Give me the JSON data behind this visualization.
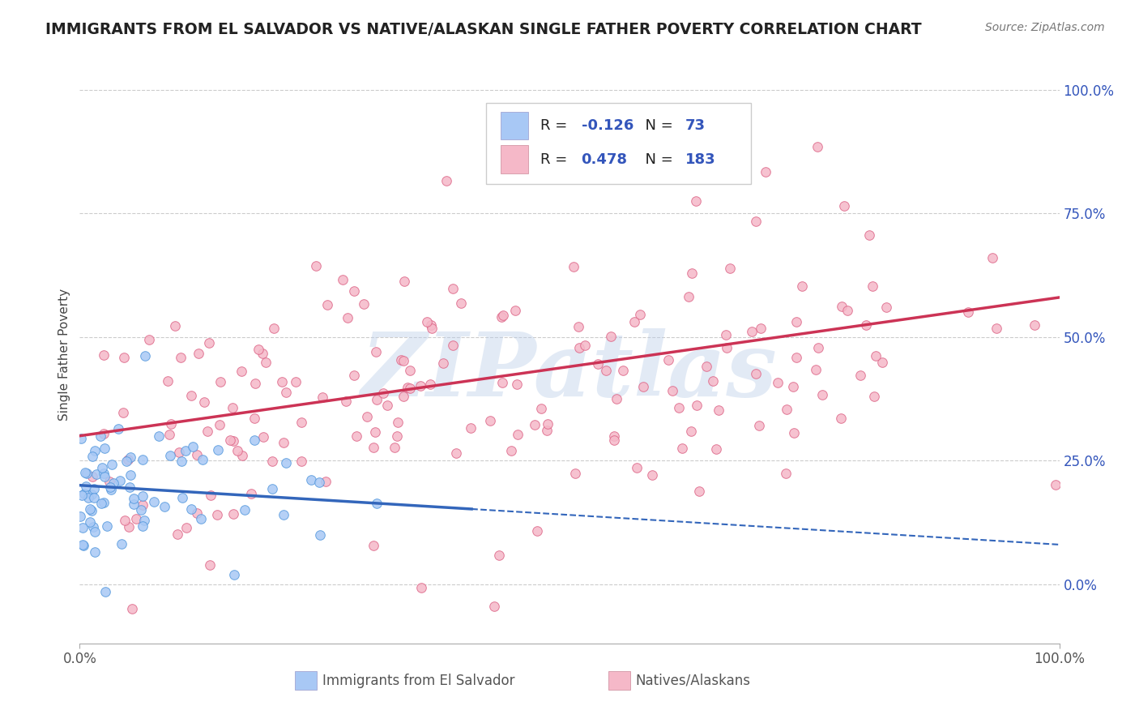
{
  "title": "IMMIGRANTS FROM EL SALVADOR VS NATIVE/ALASKAN SINGLE FATHER POVERTY CORRELATION CHART",
  "source_text": "Source: ZipAtlas.com",
  "ylabel": "Single Father Poverty",
  "watermark": "ZIPatlas",
  "legend": {
    "R1": -0.126,
    "N1": 73,
    "R2": 0.478,
    "N2": 183
  },
  "color_blue_fill": "#a8c8f5",
  "color_blue_edge": "#5599dd",
  "color_pink_fill": "#f5b8c8",
  "color_pink_edge": "#dd6688",
  "color_blue_line": "#3366bb",
  "color_pink_line": "#cc3355",
  "color_blue_dark": "#3355bb",
  "right_yticks": [
    "0.0%",
    "25.0%",
    "50.0%",
    "75.0%",
    "100.0%"
  ],
  "right_ytick_vals": [
    0.0,
    0.25,
    0.5,
    0.75,
    1.0
  ],
  "xlim": [
    0,
    1
  ],
  "ylim": [
    -0.12,
    1.05
  ],
  "n_blue": 73,
  "n_pink": 183,
  "blue_seed": 42,
  "pink_seed": 123,
  "pink_intercept": 0.3,
  "pink_slope": 0.28,
  "blue_intercept": 0.2,
  "blue_slope": -0.12
}
